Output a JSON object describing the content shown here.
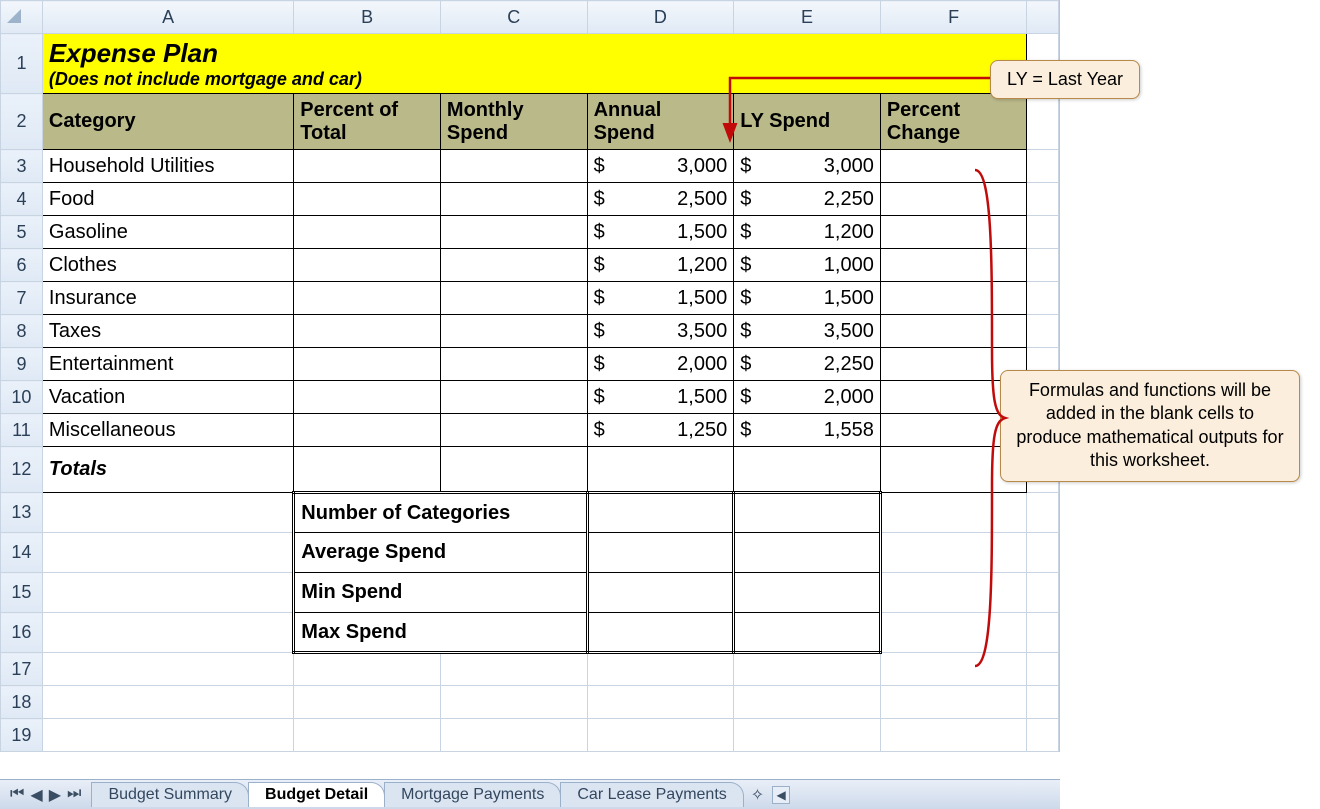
{
  "columns": [
    "A",
    "B",
    "C",
    "D",
    "E",
    "F"
  ],
  "title": {
    "line1": "Expense Plan",
    "line2": "(Does not include mortgage and car)"
  },
  "headers": {
    "A": "Category",
    "B": "Percent of\nTotal",
    "C": "Monthly\nSpend",
    "D": "Annual\nSpend",
    "E": "LY Spend",
    "F": "Percent\nChange"
  },
  "rows": [
    {
      "n": 3,
      "cat": "Household Utilities",
      "d": "3,000",
      "e": "3,000"
    },
    {
      "n": 4,
      "cat": "Food",
      "d": "2,500",
      "e": "2,250"
    },
    {
      "n": 5,
      "cat": "Gasoline",
      "d": "1,500",
      "e": "1,200"
    },
    {
      "n": 6,
      "cat": "Clothes",
      "d": "1,200",
      "e": "1,000"
    },
    {
      "n": 7,
      "cat": "Insurance",
      "d": "1,500",
      "e": "1,500"
    },
    {
      "n": 8,
      "cat": "Taxes",
      "d": "3,500",
      "e": "3,500"
    },
    {
      "n": 9,
      "cat": "Entertainment",
      "d": "2,000",
      "e": "2,250"
    },
    {
      "n": 10,
      "cat": "Vacation",
      "d": "1,500",
      "e": "2,000"
    },
    {
      "n": 11,
      "cat": "Miscellaneous",
      "d": "1,250",
      "e": "1,558"
    }
  ],
  "totals_label": "Totals",
  "stats": [
    {
      "n": 13,
      "label": "Number of Categories"
    },
    {
      "n": 14,
      "label": "Average Spend"
    },
    {
      "n": 15,
      "label": "Min Spend"
    },
    {
      "n": 16,
      "label": "Max Spend"
    }
  ],
  "blank_rows": [
    17,
    18,
    19
  ],
  "tabs": {
    "items": [
      "Budget Summary",
      "Budget Detail",
      "Mortgage Payments",
      "Car Lease Payments"
    ],
    "active": 1
  },
  "callouts": {
    "ly": "LY = Last Year",
    "formulas": "Formulas and functions will be added in the blank cells to produce mathematical outputs for this worksheet."
  },
  "colors": {
    "title_bg": "#ffff00",
    "header_bg": "#bab98a",
    "callout_bg": "#fbeedc",
    "callout_border": "#b7894a",
    "annotation": "#c10b0b",
    "grid_line": "#c9d4e2"
  }
}
